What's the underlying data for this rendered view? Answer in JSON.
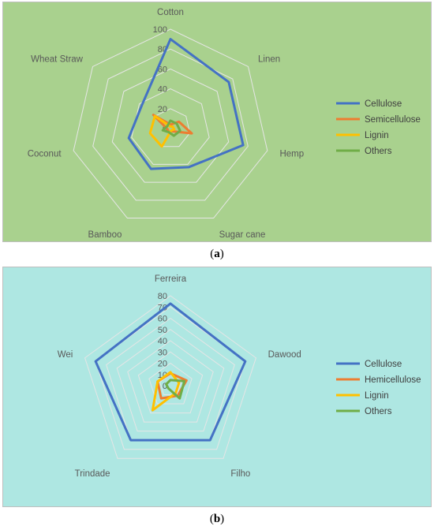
{
  "captions": {
    "a": "a",
    "b": "b"
  },
  "chart_data": [
    {
      "type": "radar",
      "categories": [
        "Cotton",
        "Linen",
        "Hemp",
        "Sugar cane",
        "Bamboo",
        "Coconut",
        "Wheat Straw"
      ],
      "rlim": [
        0,
        100
      ],
      "ticks": [
        0,
        20,
        40,
        60,
        80,
        100
      ],
      "grid": true,
      "legend": "right",
      "background": "#a9d18e",
      "series": [
        {
          "name": "Cellulose",
          "color": "#4472c4",
          "values": [
            90,
            75,
            75,
            43,
            45,
            43,
            37
          ]
        },
        {
          "name": "Semicellulose",
          "color": "#ed7d31",
          "values": [
            4,
            11,
            22,
            3,
            4,
            3,
            22
          ]
        },
        {
          "name": "Lignin",
          "color": "#ffc000",
          "values": [
            2,
            3,
            4,
            2,
            20,
            21,
            20
          ]
        },
        {
          "name": "Others",
          "color": "#70ad47",
          "values": [
            8,
            8,
            10,
            8,
            4,
            8,
            4
          ]
        }
      ]
    },
    {
      "type": "radar",
      "categories": [
        "Ferreira",
        "Dawood",
        "Filho",
        "Trindade",
        "Wei"
      ],
      "rlim": [
        0,
        80
      ],
      "ticks": [
        0,
        10,
        20,
        30,
        40,
        50,
        60,
        70,
        80
      ],
      "grid": true,
      "legend": "right",
      "background": "#aee7e2",
      "series": [
        {
          "name": "Cellulose",
          "color": "#4472c4",
          "values": [
            73,
            70,
            60,
            60,
            70
          ]
        },
        {
          "name": "Hemicellulose",
          "color": "#ed7d31",
          "values": [
            11,
            15,
            11,
            14,
            12
          ]
        },
        {
          "name": "Lignin",
          "color": "#ffc000",
          "values": [
            12,
            8,
            8,
            27,
            12
          ]
        },
        {
          "name": "Others",
          "color": "#70ad47",
          "values": [
            5,
            13,
            14,
            3,
            4
          ]
        }
      ]
    }
  ]
}
